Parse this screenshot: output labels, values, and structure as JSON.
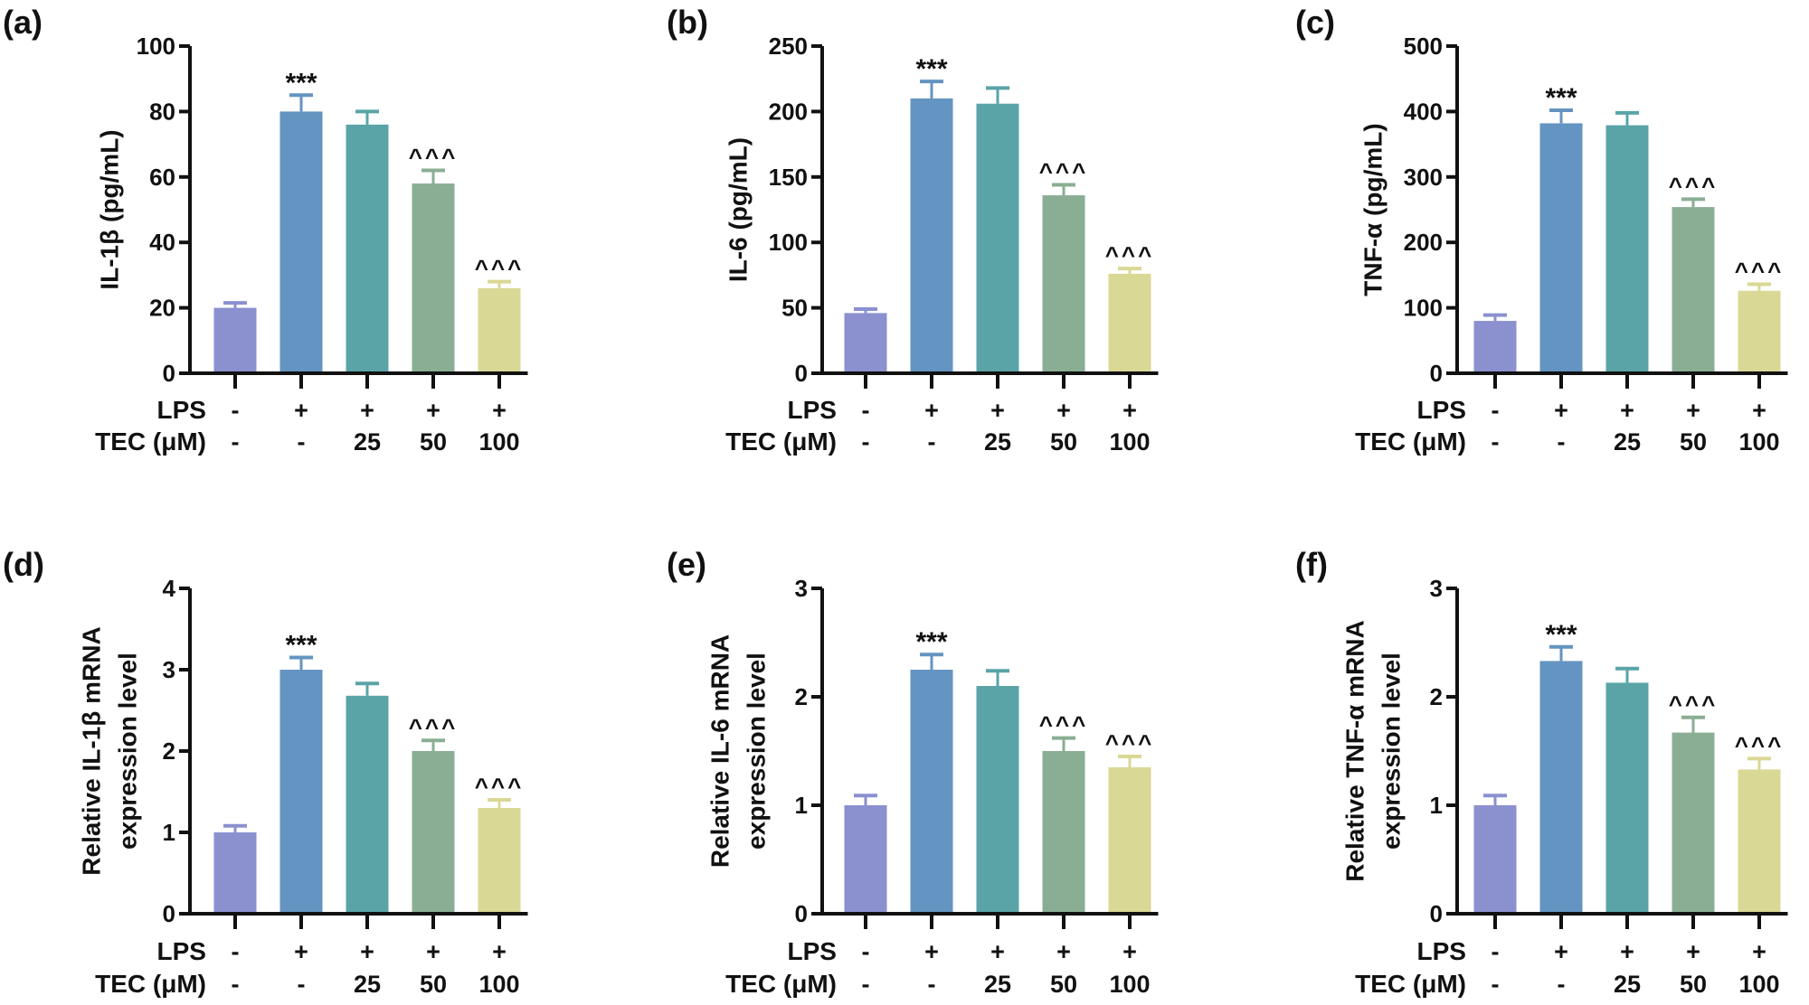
{
  "row_labels": {
    "lps": "LPS",
    "tec": "TEC (μM)"
  },
  "group_labels": {
    "lps": [
      "-",
      "+",
      "+",
      "+",
      "+"
    ],
    "tec": [
      "-",
      "-",
      "25",
      "50",
      "100"
    ]
  },
  "colors": [
    "#8b90cf",
    "#6494c1",
    "#5aa4a7",
    "#8aae94",
    "#d9d895"
  ],
  "chart_data": [
    {
      "panel": "(a)",
      "type": "bar",
      "ylabel": [
        "IL-1β (pg/mL)"
      ],
      "ylim": [
        0,
        100
      ],
      "yticks": [
        0,
        20,
        40,
        60,
        80,
        100
      ],
      "values": [
        20,
        80,
        76,
        58,
        26
      ],
      "errors": [
        1.5,
        5,
        4,
        4,
        2
      ],
      "annotations": [
        "",
        "***",
        "",
        "^^^",
        "^^^"
      ]
    },
    {
      "panel": "(b)",
      "type": "bar",
      "ylabel": [
        "IL-6 (pg/mL)"
      ],
      "ylim": [
        0,
        250
      ],
      "yticks": [
        0,
        50,
        100,
        150,
        200,
        250
      ],
      "values": [
        46,
        210,
        206,
        136,
        76
      ],
      "errors": [
        3,
        13,
        12,
        8,
        4
      ],
      "annotations": [
        "",
        "***",
        "",
        "^^^",
        "^^^"
      ]
    },
    {
      "panel": "(c)",
      "type": "bar",
      "ylabel": [
        "TNF-α (pg/mL)"
      ],
      "ylim": [
        0,
        500
      ],
      "yticks": [
        0,
        100,
        200,
        300,
        400,
        500
      ],
      "values": [
        80,
        382,
        379,
        254,
        126
      ],
      "errors": [
        9,
        20,
        19,
        12,
        10
      ],
      "annotations": [
        "",
        "***",
        "",
        "^^^",
        "^^^"
      ]
    },
    {
      "panel": "(d)",
      "type": "bar",
      "ylabel": [
        "Relative IL-1β mRNA",
        "expression level"
      ],
      "ylim": [
        0,
        4
      ],
      "yticks": [
        0,
        1,
        2,
        3,
        4
      ],
      "values": [
        1.0,
        3.0,
        2.68,
        2.0,
        1.3
      ],
      "errors": [
        0.08,
        0.15,
        0.15,
        0.13,
        0.1
      ],
      "annotations": [
        "",
        "***",
        "",
        "^^^",
        "^^^"
      ]
    },
    {
      "panel": "(e)",
      "type": "bar",
      "ylabel": [
        "Relative IL-6 mRNA",
        "expression level"
      ],
      "ylim": [
        0,
        3
      ],
      "yticks": [
        0,
        1,
        2,
        3
      ],
      "values": [
        1.0,
        2.25,
        2.1,
        1.5,
        1.35
      ],
      "errors": [
        0.09,
        0.14,
        0.14,
        0.12,
        0.1
      ],
      "annotations": [
        "",
        "***",
        "",
        "^^^",
        "^^^"
      ]
    },
    {
      "panel": "(f)",
      "type": "bar",
      "ylabel": [
        "Relative TNF-α  mRNA",
        "expression level"
      ],
      "ylim": [
        0,
        3
      ],
      "yticks": [
        0,
        1,
        2,
        3
      ],
      "values": [
        1.0,
        2.33,
        2.13,
        1.67,
        1.33
      ],
      "errors": [
        0.09,
        0.13,
        0.13,
        0.14,
        0.1
      ],
      "annotations": [
        "",
        "***",
        "",
        "^^^",
        "^^^"
      ]
    }
  ]
}
